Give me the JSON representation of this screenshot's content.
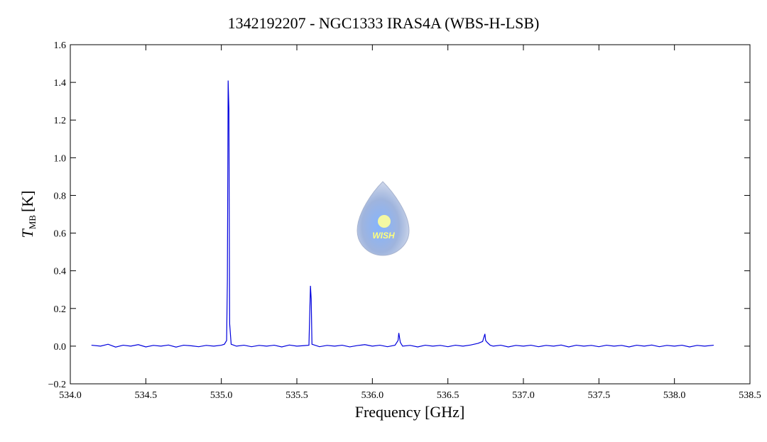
{
  "chart_data": {
    "type": "line",
    "title": "1342192207 - NGC1333 IRAS4A (WBS-H-LSB)",
    "x_label": "Frequency [GHz]",
    "y_label": "T",
    "y_label_sub": "MB",
    "y_label_unit": "[K]",
    "logo_text": "WISH",
    "x": [
      534.14,
      534.2,
      534.25,
      534.3,
      534.35,
      534.4,
      534.45,
      534.5,
      534.55,
      534.6,
      534.65,
      534.7,
      534.75,
      534.8,
      534.85,
      534.9,
      534.95,
      535.0,
      535.02,
      535.035,
      535.04,
      535.045,
      535.05,
      535.055,
      535.065,
      535.1,
      535.15,
      535.2,
      535.25,
      535.3,
      535.35,
      535.4,
      535.45,
      535.5,
      535.55,
      535.58,
      535.59,
      535.595,
      535.6,
      535.65,
      535.7,
      535.75,
      535.8,
      535.85,
      535.9,
      535.95,
      536.0,
      536.05,
      536.1,
      536.15,
      536.17,
      536.175,
      536.185,
      536.2,
      536.25,
      536.3,
      536.35,
      536.4,
      536.45,
      536.5,
      536.55,
      536.6,
      536.65,
      536.7,
      536.73,
      536.745,
      536.75,
      536.76,
      536.78,
      536.8,
      536.85,
      536.9,
      536.95,
      537.0,
      537.05,
      537.1,
      537.15,
      537.2,
      537.25,
      537.3,
      537.35,
      537.4,
      537.45,
      537.5,
      537.55,
      537.6,
      537.65,
      537.7,
      537.75,
      537.8,
      537.85,
      537.9,
      537.95,
      538.0,
      538.05,
      538.1,
      538.15,
      538.2,
      538.26
    ],
    "series": [
      {
        "color": "#0000dd",
        "values": [
          0.005,
          0.0,
          0.01,
          -0.005,
          0.005,
          0.0,
          0.008,
          -0.004,
          0.004,
          0.0,
          0.006,
          -0.005,
          0.005,
          0.002,
          -0.003,
          0.004,
          0.0,
          0.005,
          0.01,
          0.03,
          0.35,
          1.41,
          1.26,
          0.12,
          0.01,
          0.0,
          0.005,
          -0.003,
          0.004,
          0.0,
          0.005,
          -0.004,
          0.006,
          0.0,
          0.003,
          0.005,
          0.32,
          0.25,
          0.01,
          -0.003,
          0.004,
          0.0,
          0.005,
          -0.004,
          0.003,
          0.008,
          0.0,
          0.005,
          -0.003,
          0.005,
          0.03,
          0.07,
          0.02,
          0.0,
          0.004,
          -0.004,
          0.005,
          0.0,
          0.004,
          -0.003,
          0.005,
          0.0,
          0.006,
          0.015,
          0.025,
          0.065,
          0.03,
          0.02,
          0.005,
          0.0,
          0.005,
          -0.004,
          0.004,
          0.0,
          0.005,
          -0.003,
          0.004,
          0.0,
          0.006,
          -0.004,
          0.005,
          0.0,
          0.004,
          -0.003,
          0.005,
          0.0,
          0.004,
          -0.004,
          0.005,
          0.0,
          0.006,
          -0.003,
          0.004,
          0.0,
          0.005,
          -0.004,
          0.004,
          0.0,
          0.005
        ]
      }
    ],
    "xlim": [
      534.0,
      538.5
    ],
    "xticks": [
      {
        "value": 534,
        "label": "534.0"
      },
      534.5,
      {
        "value": 535,
        "label": "535.0"
      },
      535.5,
      {
        "value": 536,
        "label": "536.0"
      },
      536.5,
      {
        "value": 537,
        "label": "537.0"
      },
      537.5,
      {
        "value": 538,
        "label": "538.0"
      },
      538.5
    ],
    "ylim": [
      -0.2,
      1.6
    ],
    "yticks": [
      {
        "value": -0.2,
        "label": "−0.2"
      },
      {
        "value": 0,
        "label": "0.0"
      },
      0.2,
      0.4,
      0.6,
      0.8,
      {
        "value": 1,
        "label": "1.0"
      },
      1.2,
      1.4,
      1.6
    ]
  }
}
